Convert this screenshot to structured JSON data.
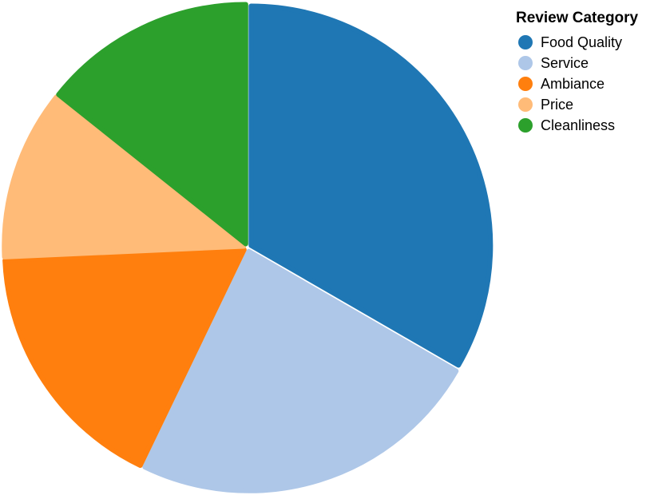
{
  "chart_data": {
    "type": "pie",
    "categories": [
      "Food Quality",
      "Service",
      "Ambiance",
      "Price",
      "Cleanliness"
    ],
    "values": [
      35,
      25,
      18,
      12,
      15
    ],
    "colors": [
      "#1f77b4",
      "#aec7e8",
      "#ff7f0e",
      "#ffbb78",
      "#2ca02c"
    ],
    "legend": {
      "title": "Review Category",
      "position": "top-right"
    }
  }
}
